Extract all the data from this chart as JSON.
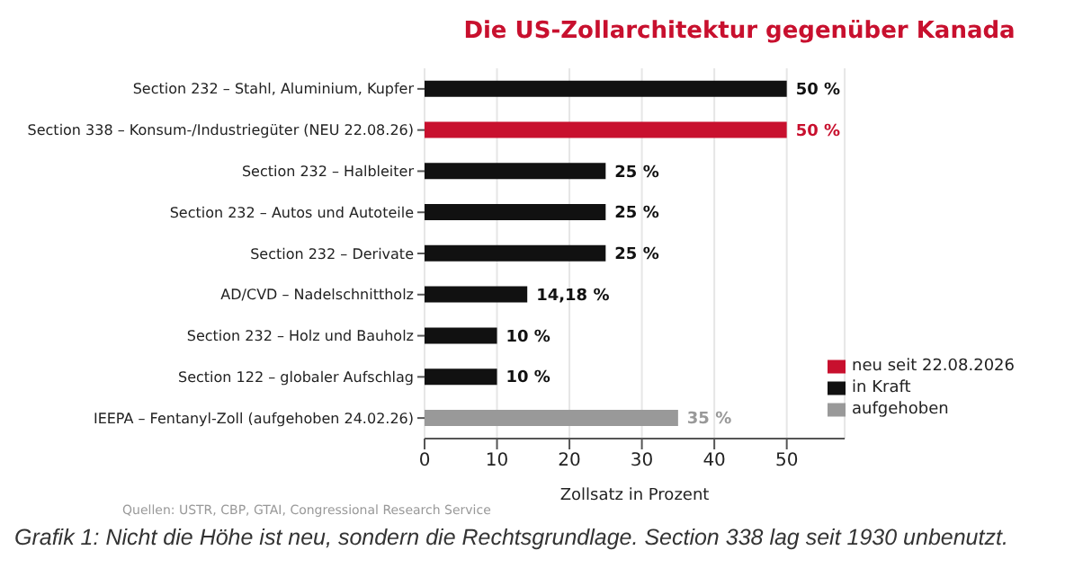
{
  "chart_data": {
    "type": "bar",
    "orientation": "horizontal",
    "stacked": true,
    "title": "Die US-Zollarchitektur gegenüber Kanada",
    "xlabel": "Zollsatz in Prozent",
    "categories": [
      "Section 232 – Stahl, Aluminium, Kupfer",
      "Section 338 – Konsum-/Industriegüter (NEU 22.08.26)",
      "Section 232 – Halbleiter",
      "Section 232 – Autos und Autoteile",
      "Section 232 – Derivate",
      "AD/CVD – Nadelschnittholz",
      "Section 232 – Holz und Bauholz",
      "Section 122 – globaler Aufschlag",
      "IEEPA – Fentanyl-Zoll (aufgehoben 24.02.26)"
    ],
    "series": [
      {
        "name": "neu seit 22.08.2026",
        "color": "#c8102e",
        "values": [
          null,
          50,
          null,
          null,
          null,
          null,
          null,
          null,
          null
        ],
        "value_labels": [
          null,
          "50 %",
          null,
          null,
          null,
          null,
          null,
          null,
          null
        ]
      },
      {
        "name": "in Kraft",
        "color": "#111111",
        "values": [
          50,
          null,
          25,
          25,
          25,
          14.18,
          10,
          10,
          null
        ],
        "value_labels": [
          "50 %",
          null,
          "25 %",
          "25 %",
          "25 %",
          "14,18 %",
          "10 %",
          "10 %",
          null
        ]
      },
      {
        "name": "aufgehoben",
        "color": "#999999",
        "values": [
          null,
          null,
          null,
          null,
          null,
          null,
          null,
          null,
          35
        ],
        "value_labels": [
          null,
          null,
          null,
          null,
          null,
          null,
          null,
          null,
          "35 %"
        ]
      }
    ],
    "xlim": [
      0,
      58
    ],
    "xticks": [
      0,
      10,
      20,
      30,
      40,
      50
    ],
    "grid": "x",
    "legend": "bottom right",
    "annotations": [
      "Quellen: USTR, CBP, GTAI, Congressional Research Service",
      "Grafik 1: Nicht die Höhe ist neu, sondern die Rechtsgrundlage. Section 338 lag seit 1930 unbenutzt."
    ]
  }
}
